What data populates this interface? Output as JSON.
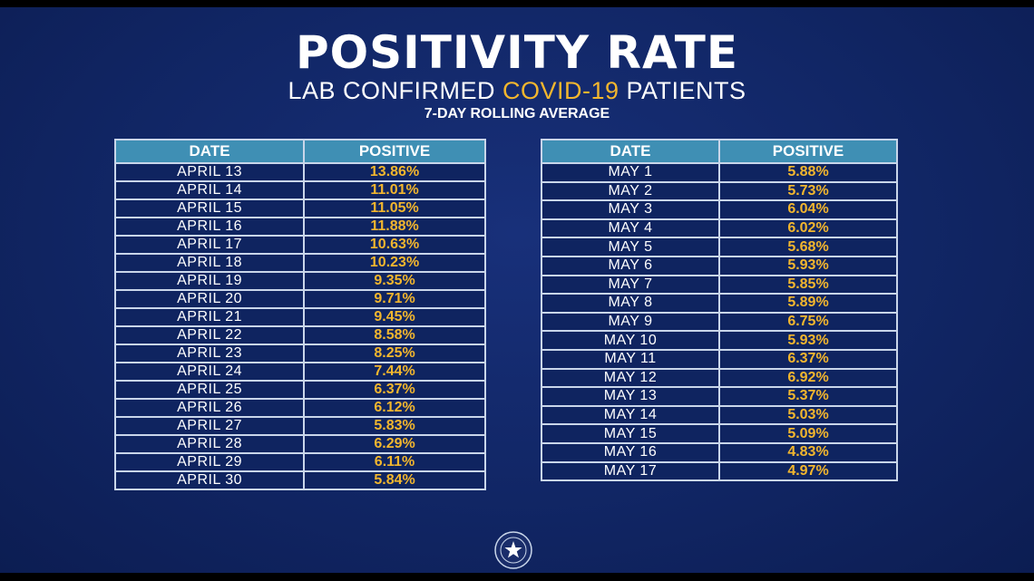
{
  "header": {
    "title": "POSITIVITY RATE",
    "subtitle_pre": "LAB CONFIRMED ",
    "subtitle_highlight": "COVID-19",
    "subtitle_post": " PATIENTS",
    "caption": "7-DAY ROLLING AVERAGE"
  },
  "colors": {
    "background": "#112665",
    "header_cell": "#3f8fb4",
    "highlight": "#f2b62e",
    "text": "#ffffff"
  },
  "left_table": {
    "headers": [
      "DATE",
      "POSITIVE"
    ],
    "rows": [
      [
        "APRIL 13",
        "13.86%"
      ],
      [
        "APRIL 14",
        "11.01%"
      ],
      [
        "APRIL 15",
        "11.05%"
      ],
      [
        "APRIL 16",
        "11.88%"
      ],
      [
        "APRIL 17",
        "10.63%"
      ],
      [
        "APRIL 18",
        "10.23%"
      ],
      [
        "APRIL 19",
        "9.35%"
      ],
      [
        "APRIL 20",
        "9.71%"
      ],
      [
        "APRIL 21",
        "9.45%"
      ],
      [
        "APRIL 22",
        "8.58%"
      ],
      [
        "APRIL 23",
        "8.25%"
      ],
      [
        "APRIL 24",
        "7.44%"
      ],
      [
        "APRIL 25",
        "6.37%"
      ],
      [
        "APRIL 26",
        "6.12%"
      ],
      [
        "APRIL 27",
        "5.83%"
      ],
      [
        "APRIL 28",
        "6.29%"
      ],
      [
        "APRIL 29",
        "6.11%"
      ],
      [
        "APRIL 30",
        "5.84%"
      ]
    ]
  },
  "right_table": {
    "headers": [
      "DATE",
      "POSITIVE"
    ],
    "rows": [
      [
        "MAY 1",
        "5.88%"
      ],
      [
        "MAY 2",
        "5.73%"
      ],
      [
        "MAY 3",
        "6.04%"
      ],
      [
        "MAY 4",
        "6.02%"
      ],
      [
        "MAY 5",
        "5.68%"
      ],
      [
        "MAY 6",
        "5.93%"
      ],
      [
        "MAY 7",
        "5.85%"
      ],
      [
        "MAY 8",
        "5.89%"
      ],
      [
        "MAY 9",
        "6.75%"
      ],
      [
        "MAY 10",
        "5.93%"
      ],
      [
        "MAY 11",
        "6.37%"
      ],
      [
        "MAY 12",
        "6.92%"
      ],
      [
        "MAY 13",
        "5.37%"
      ],
      [
        "MAY 14",
        "5.03%"
      ],
      [
        "MAY 15",
        "5.09%"
      ],
      [
        "MAY 16",
        "4.83%"
      ],
      [
        "MAY 17",
        "4.97%"
      ]
    ]
  },
  "footer": {
    "icon": "state-seal-icon"
  }
}
